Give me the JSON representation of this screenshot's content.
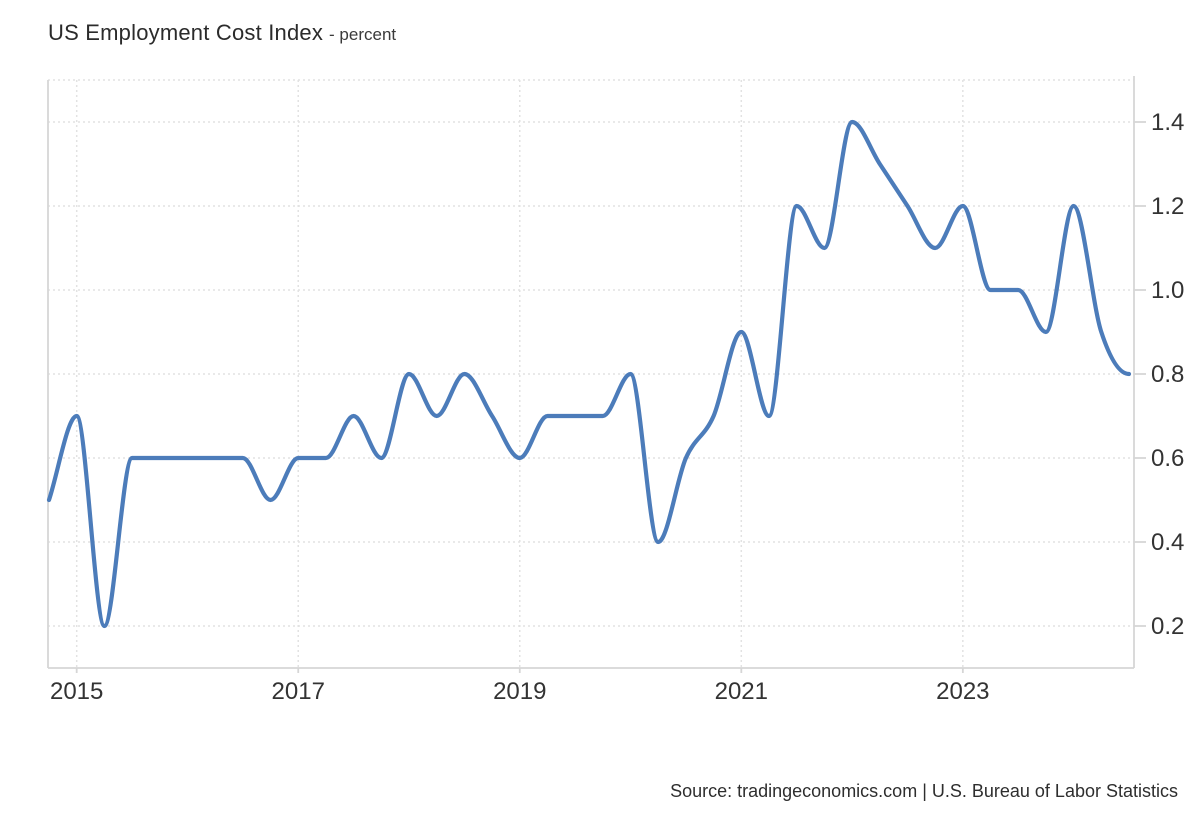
{
  "header": {
    "title": "US Employment Cost Index",
    "subtitle": "- percent"
  },
  "footer": {
    "source": "Source: tradingeconomics.com | U.S. Bureau of Labor Statistics"
  },
  "chart_data": {
    "type": "line",
    "title": "US Employment Cost Index",
    "subtitle": "- percent",
    "unit": "percent",
    "frequency": "quarterly",
    "x": [
      "2014-Q4",
      "2015-Q1",
      "2015-Q2",
      "2015-Q3",
      "2015-Q4",
      "2016-Q1",
      "2016-Q2",
      "2016-Q3",
      "2016-Q4",
      "2017-Q1",
      "2017-Q2",
      "2017-Q3",
      "2017-Q4",
      "2018-Q1",
      "2018-Q2",
      "2018-Q3",
      "2018-Q4",
      "2019-Q1",
      "2019-Q2",
      "2019-Q3",
      "2019-Q4",
      "2020-Q1",
      "2020-Q2",
      "2020-Q3",
      "2020-Q4",
      "2021-Q1",
      "2021-Q2",
      "2021-Q3",
      "2021-Q4",
      "2022-Q1",
      "2022-Q2",
      "2022-Q3",
      "2022-Q4",
      "2023-Q1",
      "2023-Q2",
      "2023-Q3",
      "2023-Q4",
      "2024-Q1",
      "2024-Q2",
      "2024-Q3"
    ],
    "values": [
      0.5,
      0.7,
      0.2,
      0.6,
      0.6,
      0.6,
      0.6,
      0.6,
      0.5,
      0.6,
      0.6,
      0.7,
      0.6,
      0.8,
      0.7,
      0.8,
      0.7,
      0.6,
      0.7,
      0.7,
      0.7,
      0.8,
      0.4,
      0.6,
      0.7,
      0.9,
      0.7,
      1.2,
      1.1,
      1.4,
      1.3,
      1.2,
      1.1,
      1.2,
      1.0,
      1.0,
      0.9,
      1.2,
      0.9,
      0.8
    ],
    "ylim": [
      0.1,
      1.5
    ],
    "yticks": [
      {
        "v": 0.2,
        "label": "0.2"
      },
      {
        "v": 0.4,
        "label": "0.4"
      },
      {
        "v": 0.6,
        "label": "0.6"
      },
      {
        "v": 0.8,
        "label": "0.8"
      },
      {
        "v": 1.0,
        "label": "1.0"
      },
      {
        "v": 1.2,
        "label": "1.2"
      },
      {
        "v": 1.4,
        "label": "1.4"
      }
    ],
    "xticks": [
      {
        "i": 1,
        "label": "2015"
      },
      {
        "i": 9,
        "label": "2017"
      },
      {
        "i": 17,
        "label": "2019"
      },
      {
        "i": 25,
        "label": "2021"
      },
      {
        "i": 33,
        "label": "2023"
      }
    ],
    "grid": true,
    "legend": "none",
    "colors": {
      "line": "#4c7cba",
      "grid": "#e2e2e2",
      "axis": "#d6d6d6",
      "label": "#333333"
    }
  }
}
